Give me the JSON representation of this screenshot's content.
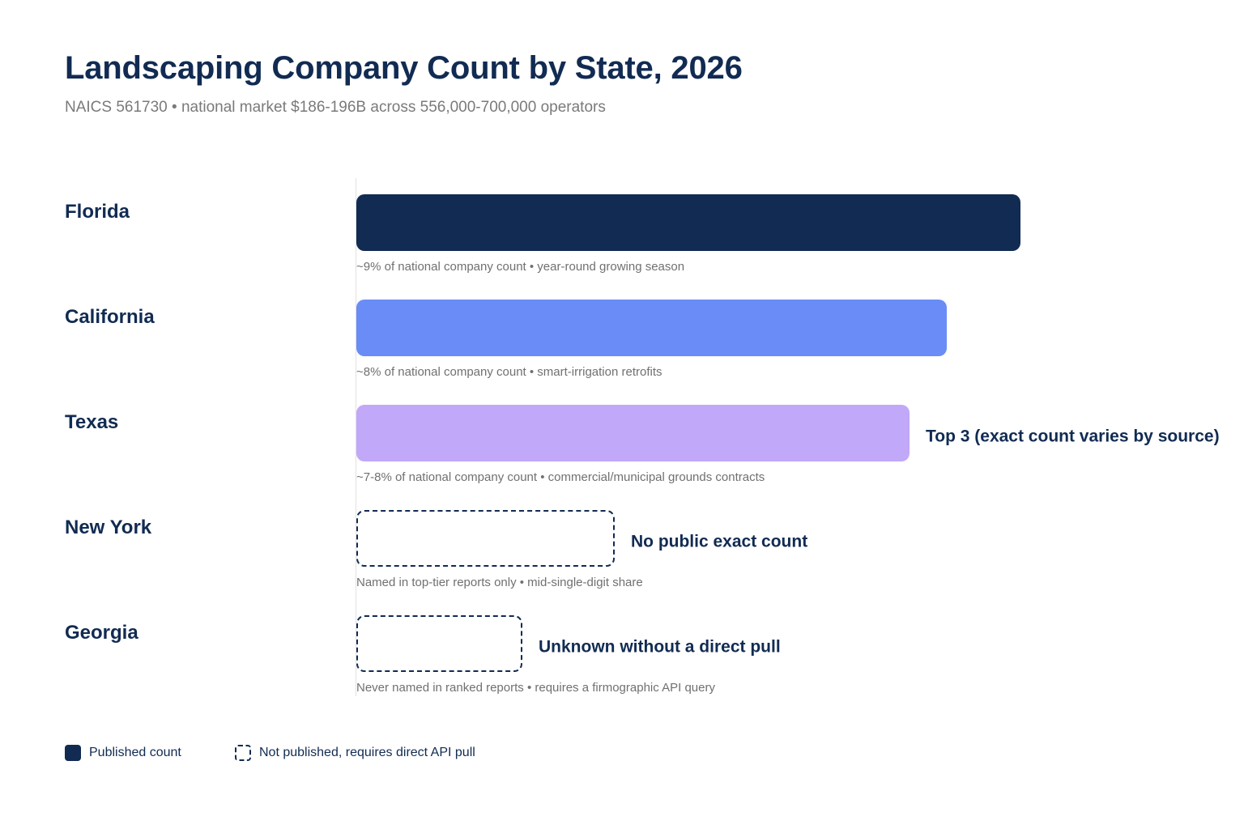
{
  "colors": {
    "navy": "#112b52",
    "blue": "#698cf6",
    "lavender": "#c1a8f8",
    "muted_text": "#707070"
  },
  "chart_data": {
    "type": "bar",
    "orientation": "horizontal",
    "title": "Landscaping Company Count by State, 2026",
    "subtitle": "NAICS 561730 • national market $186-196B across 556,000-700,000 operators",
    "xlim": [
      0,
      10
    ],
    "grid": false,
    "legend_position": "bottom-left",
    "categories": [
      "Florida",
      "California",
      "Texas",
      "New York",
      "Georgia"
    ],
    "values": [
      9,
      8,
      7.5,
      3.5,
      2.25
    ],
    "bars": [
      {
        "state": "Florida",
        "value": 9,
        "published": true,
        "color": "#112b52",
        "note": "",
        "subtext": "~9% of national company count • year-round growing season"
      },
      {
        "state": "California",
        "value": 8,
        "published": true,
        "color": "#698cf6",
        "note": "",
        "subtext": "~8% of national company count • smart-irrigation retrofits"
      },
      {
        "state": "Texas",
        "value": 7.5,
        "published": true,
        "color": "#c1a8f8",
        "note": "Top 3 (exact count varies by source)",
        "subtext": "~7-8% of national company count • commercial/municipal grounds contracts"
      },
      {
        "state": "New York",
        "value": 3.5,
        "published": false,
        "color": "#112b52",
        "note": "No public exact count",
        "subtext": "Named in top-tier reports only • mid-single-digit share"
      },
      {
        "state": "Georgia",
        "value": 2.25,
        "published": false,
        "color": "#112b52",
        "note": "Unknown without a direct pull",
        "subtext": "Never named in ranked reports • requires a firmographic API query"
      }
    ],
    "legend": [
      {
        "label": "Published count",
        "style": "solid"
      },
      {
        "label": "Not published, requires direct API pull",
        "style": "dashed"
      }
    ]
  }
}
